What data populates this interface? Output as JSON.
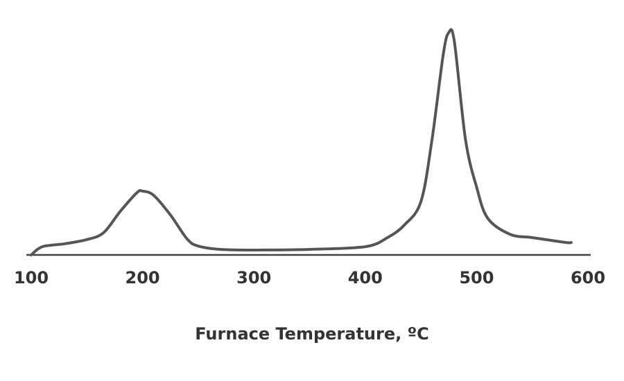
{
  "chart_data": {
    "type": "line",
    "x_label": "Furnace Temperature, ºC",
    "x": [
      100,
      110,
      130,
      150,
      165,
      180,
      195,
      200,
      210,
      225,
      240,
      250,
      270,
      300,
      350,
      400,
      420,
      435,
      450,
      460,
      470,
      475,
      480,
      490,
      500,
      510,
      530,
      550,
      580,
      585
    ],
    "series": [
      {
        "color": "#555555",
        "values": [
          0,
          3.7,
          5,
          6.9,
          10,
          19.6,
          28,
          28.7,
          26.8,
          18,
          7.2,
          4,
          2.5,
          2.2,
          2.5,
          3.7,
          7.8,
          13.4,
          24,
          52,
          90,
          100,
          96,
          52,
          30.5,
          16.5,
          9.3,
          7.8,
          5.6,
          5.6
        ]
      }
    ],
    "xlim": [
      100,
      600
    ],
    "xticks": [
      100,
      200,
      300,
      400,
      500,
      600
    ],
    "ylim": [
      0,
      100
    ],
    "grid": false
  }
}
